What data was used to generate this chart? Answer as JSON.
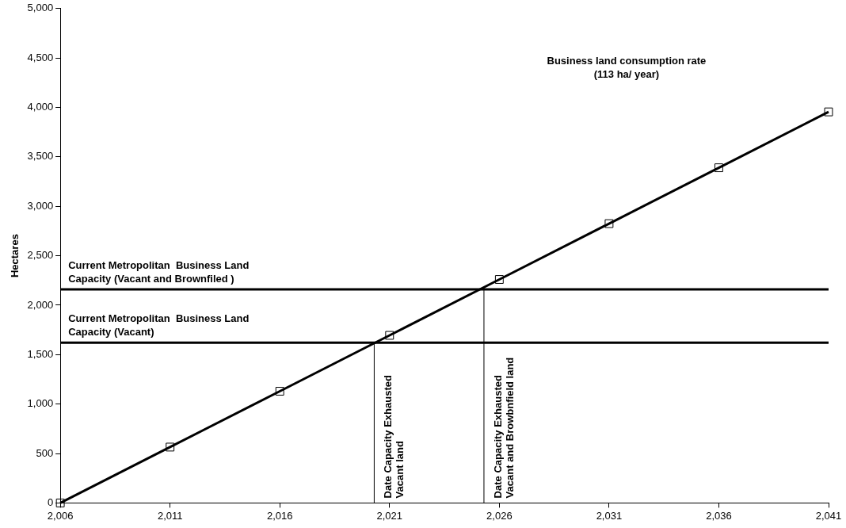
{
  "chart_data": {
    "type": "line",
    "ylabel": "Hectares",
    "x": [
      2006,
      2011,
      2016,
      2021,
      2026,
      2031,
      2036,
      2041
    ],
    "series": [
      {
        "color": "#000000",
        "values": [
          0,
          565,
          1130,
          1695,
          2260,
          2825,
          3390,
          3955
        ]
      }
    ],
    "xlim": [
      2006,
      2041
    ],
    "xticks": [
      {
        "value": 2006,
        "label": "2,006"
      },
      {
        "value": 2011,
        "label": "2,011"
      },
      {
        "value": 2016,
        "label": "2,016"
      },
      {
        "value": 2021,
        "label": "2,021"
      },
      {
        "value": 2026,
        "label": "2,026"
      },
      {
        "value": 2031,
        "label": "2,031"
      },
      {
        "value": 2036,
        "label": "2,036"
      },
      {
        "value": 2041,
        "label": "2,041"
      }
    ],
    "ylim": [
      0,
      5000
    ],
    "yticks": [
      {
        "value": 0,
        "label": "0"
      },
      {
        "value": 500,
        "label": "500"
      },
      {
        "value": 1000,
        "label": "1,000"
      },
      {
        "value": 1500,
        "label": "1,500"
      },
      {
        "value": 2000,
        "label": "2,000"
      },
      {
        "value": 2500,
        "label": "2,500"
      },
      {
        "value": 3000,
        "label": "3,000"
      },
      {
        "value": 3500,
        "label": "3,500"
      },
      {
        "value": 4000,
        "label": "4,000"
      },
      {
        "value": 4500,
        "label": "4,500"
      },
      {
        "value": 5000,
        "label": "5,000"
      }
    ],
    "ref_lines": [
      {
        "axis": "y",
        "value": 2160,
        "label": "Current Metropolitan  Business Land\nCapacity (Vacant and Brownfiled )",
        "color": "#000000"
      },
      {
        "axis": "y",
        "value": 1620,
        "label": "Current Metropolitan  Business Land\nCapacity (Vacant)",
        "color": "#000000"
      },
      {
        "axis": "x",
        "value": 2020.3,
        "label": "Date Capacity Exhausted\nVacant land",
        "color": "#000000"
      },
      {
        "axis": "x",
        "value": 2025.3,
        "label": "Date Capacity Exhausted\nVacant and Browbnfield land",
        "color": "#000000"
      }
    ],
    "annotations": [
      "Business land consumption rate\n(113 ha/ year)"
    ],
    "marker": "square",
    "line_style": "solid",
    "grid": false,
    "legend": false
  }
}
